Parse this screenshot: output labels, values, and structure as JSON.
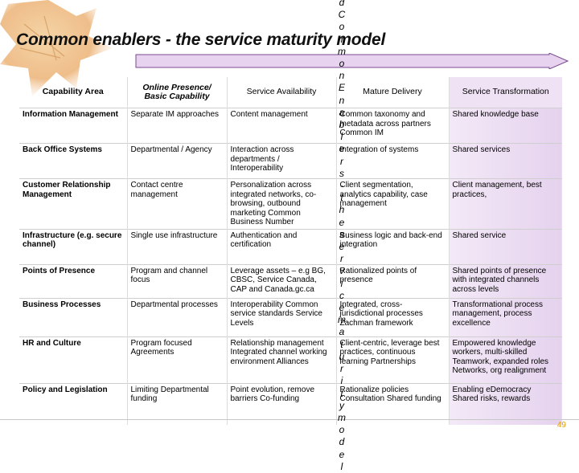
{
  "title": "Common enablers  - the service maturity model",
  "overlay_letters": [
    "d",
    "C",
    "o",
    "m",
    "m",
    "o",
    "n",
    "E",
    "n",
    "a",
    "b",
    "l",
    "e",
    "r",
    "s",
    "-",
    "t",
    "h",
    "e",
    "s",
    "e",
    "r",
    "v",
    "i",
    "c",
    "e",
    "m",
    "a",
    "t",
    "u",
    "r",
    "i",
    "t",
    "y",
    "m",
    "o",
    "d",
    "e",
    "l"
  ],
  "page_number": "49",
  "columns": [
    "Capability Area",
    "Online Presence/ Basic Capability",
    "Service Availability",
    "Mature Delivery",
    "Service Transformation"
  ],
  "rows": [
    {
      "area": "Information Management",
      "cells": [
        "Separate IM approaches",
        "Content management",
        "Common taxonomy and metadata across partners Common IM",
        "Shared knowledge base"
      ]
    },
    {
      "area": "Back Office Systems",
      "cells": [
        "Departmental / Agency",
        "Interaction across departments / Interoperability",
        "Integration of systems",
        "Shared services"
      ]
    },
    {
      "area": "Customer Relationship Management",
      "cells": [
        "Contact  centre management",
        "Personalization across integrated networks, co-browsing, outbound marketing Common Business Number",
        "Client segmentation, analytics capability, case management",
        "Client management, best practices,"
      ]
    },
    {
      "area": "Infrastructure (e.g. secure channel)",
      "cells": [
        "Single use infrastructure",
        "Authentication and certification",
        "Business logic and back-end integration",
        "Shared service"
      ]
    },
    {
      "area": "Points of Presence",
      "cells": [
        "Program and channel focus",
        "Leverage assets – e.g BG, CBSC, Service Canada, CAP and Canada.gc.ca",
        "Rationalized points of presence",
        "Shared points of presence with integrated channels across levels"
      ]
    },
    {
      "area": "Business Processes",
      "cells": [
        "Departmental processes",
        "Interoperability Common service standards Service Levels",
        "Integrated, cross-jurisdictional processes Zachman framework",
        "Transformational process management, process excellence"
      ]
    },
    {
      "area": "HR and Culture",
      "cells": [
        "Program focused Agreements",
        "Relationship management Integrated channel working environment Alliances",
        "Client-centric, leverage best practices, continuous learning Partnerships",
        "Empowered knowledge workers, multi-skilled Teamwork, expanded roles Networks, org realignment"
      ]
    },
    {
      "area": "Policy and Legislation",
      "cells": [
        "Limiting Departmental funding",
        "Point evolution, remove barriers Co-funding",
        "Rationalize policies Consultation Shared funding",
        "Enabling eDemocracy Shared risks, rewards"
      ]
    }
  ],
  "colors": {
    "arrow_fill": "#e7d3ef",
    "transformation_tint": "#efe2f5",
    "page_number": "#e0a000"
  }
}
